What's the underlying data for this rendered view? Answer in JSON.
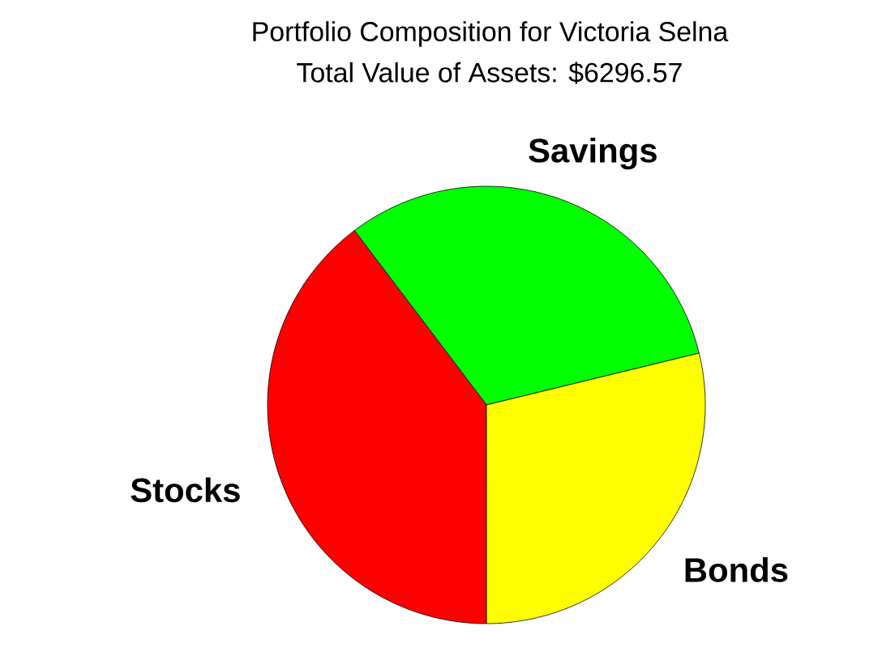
{
  "chart_data": {
    "type": "pie",
    "title": "Portfolio Composition for Victoria Selna",
    "subtitle": "Total Value of Assets: $6296.57",
    "categories": [
      "Savings",
      "Stocks",
      "Bonds"
    ],
    "values": [
      31.5,
      39.7,
      28.8
    ],
    "colors": [
      "#00ff00",
      "#ff0000",
      "#ffff00"
    ]
  }
}
